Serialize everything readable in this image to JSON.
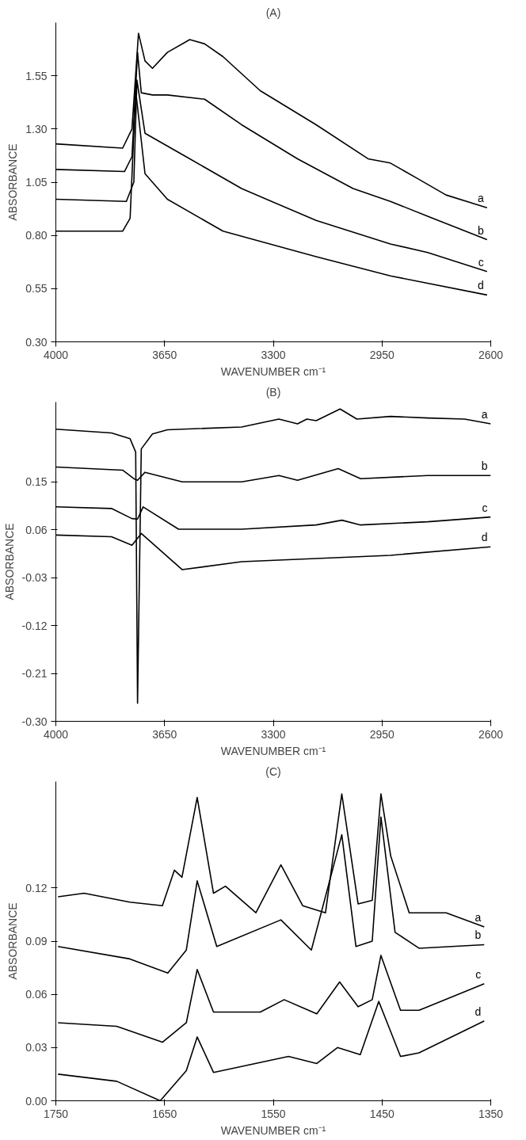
{
  "chart_data": [
    {
      "type": "line",
      "title": "(A)",
      "xlabel": "WAVENUMBER cm⁻¹",
      "ylabel": "ABSORBANCE",
      "xlim": [
        4000,
        2600
      ],
      "xticks": [
        4000,
        3650,
        3300,
        2950,
        2600
      ],
      "ylim": [
        0.3,
        1.8
      ],
      "yticks": [
        {
          "value": 0.3,
          "label": "0.30"
        },
        {
          "value": 0.55,
          "label": "0.55"
        },
        {
          "value": 0.8,
          "label": "0.80"
        },
        {
          "value": 1.05,
          "label": "1.05"
        },
        {
          "value": 1.3,
          "label": "1.30"
        },
        {
          "value": 1.55,
          "label": "1.55"
        }
      ],
      "grid": false,
      "legend": false,
      "series": [
        {
          "name": "a",
          "color": "#000000",
          "x": [
            4000,
            3785,
            3755,
            3734,
            3713,
            3689,
            3641,
            3569,
            3521,
            3462,
            3342,
            3162,
            2995,
            2923,
            2839,
            2744,
            2612
          ],
          "values": [
            1.23,
            1.21,
            1.3,
            1.75,
            1.62,
            1.585,
            1.66,
            1.72,
            1.7,
            1.64,
            1.48,
            1.32,
            1.16,
            1.14,
            1.07,
            0.99,
            0.93
          ]
        },
        {
          "name": "b",
          "color": "#000000",
          "x": [
            4000,
            3779,
            3755,
            3737,
            3725,
            3689,
            3641,
            3521,
            3402,
            3222,
            3043,
            2923,
            2803,
            2612
          ],
          "values": [
            1.11,
            1.1,
            1.17,
            1.66,
            1.47,
            1.46,
            1.46,
            1.44,
            1.32,
            1.16,
            1.02,
            0.96,
            0.89,
            0.78
          ]
        },
        {
          "name": "c",
          "color": "#000000",
          "x": [
            4000,
            3773,
            3749,
            3739,
            3713,
            3581,
            3402,
            3162,
            2923,
            2803,
            2612
          ],
          "values": [
            0.97,
            0.96,
            1.05,
            1.53,
            1.28,
            1.17,
            1.02,
            0.87,
            0.76,
            0.72,
            0.63
          ]
        },
        {
          "name": "d",
          "color": "#000000",
          "x": [
            4000,
            3785,
            3761,
            3743,
            3713,
            3641,
            3462,
            3162,
            2923,
            2612
          ],
          "values": [
            0.82,
            0.82,
            0.88,
            1.48,
            1.09,
            0.97,
            0.82,
            0.7,
            0.61,
            0.52
          ]
        }
      ]
    },
    {
      "type": "line",
      "title": "(B)",
      "xlabel": "WAVENUMBER cm⁻¹",
      "ylabel": "ABSORBANCE",
      "xlim": [
        4000,
        2600
      ],
      "xticks": [
        4000,
        3650,
        3300,
        2950,
        2600
      ],
      "ylim": [
        -0.3,
        0.3
      ],
      "yticks": [
        {
          "value": -0.3,
          "label": "-0.30"
        },
        {
          "value": -0.21,
          "label": "-0.21"
        },
        {
          "value": -0.12,
          "label": "-0.12"
        },
        {
          "value": -0.03,
          "label": "-0.03"
        },
        {
          "value": 0.06,
          "label": "0.06"
        },
        {
          "value": 0.15,
          "label": "0.15"
        }
      ],
      "grid": false,
      "legend": false,
      "series": [
        {
          "name": "a",
          "color": "#000000",
          "x": [
            4000,
            3821,
            3761,
            3743,
            3737,
            3725,
            3689,
            3641,
            3402,
            3282,
            3222,
            3192,
            3162,
            3085,
            3031,
            2923,
            2803,
            2684,
            2600
          ],
          "values": [
            0.249,
            0.242,
            0.231,
            0.206,
            -0.266,
            0.212,
            0.24,
            0.248,
            0.253,
            0.268,
            0.259,
            0.268,
            0.265,
            0.287,
            0.268,
            0.273,
            0.27,
            0.268,
            0.259
          ]
        },
        {
          "name": "b",
          "color": "#000000",
          "x": [
            4000,
            3785,
            3749,
            3737,
            3713,
            3593,
            3402,
            3282,
            3222,
            3091,
            3019,
            2803,
            2600
          ],
          "values": [
            0.178,
            0.172,
            0.156,
            0.153,
            0.168,
            0.15,
            0.15,
            0.162,
            0.153,
            0.175,
            0.156,
            0.162,
            0.162
          ]
        },
        {
          "name": "c",
          "color": "#000000",
          "x": [
            4000,
            3821,
            3755,
            3737,
            3719,
            3605,
            3402,
            3162,
            3079,
            3019,
            2803,
            2600
          ],
          "values": [
            0.103,
            0.1,
            0.081,
            0.08,
            0.103,
            0.061,
            0.061,
            0.069,
            0.078,
            0.069,
            0.075,
            0.084
          ]
        },
        {
          "name": "d",
          "color": "#000000",
          "x": [
            4000,
            3821,
            3755,
            3725,
            3593,
            3402,
            3162,
            2923,
            2600
          ],
          "values": [
            0.05,
            0.047,
            0.031,
            0.053,
            -0.015,
            0.0,
            0.006,
            0.012,
            0.028
          ]
        }
      ]
    },
    {
      "type": "line",
      "title": "(C)",
      "xlabel": "WAVENUMBER cm⁻¹",
      "ylabel": "ABSORBANCE",
      "xlim": [
        1750,
        1350
      ],
      "xticks": [
        1750,
        1650,
        1550,
        1450,
        1350
      ],
      "ylim": [
        0.0,
        0.18
      ],
      "yticks": [
        {
          "value": 0.0,
          "label": "0.00"
        },
        {
          "value": 0.03,
          "label": "0.03"
        },
        {
          "value": 0.06,
          "label": "0.06"
        },
        {
          "value": 0.09,
          "label": "0.09"
        },
        {
          "value": 0.12,
          "label": "0.12"
        }
      ],
      "grid": false,
      "legend": false,
      "series": [
        {
          "name": "a",
          "color": "#000000",
          "x": [
            1748,
            1724,
            1682,
            1652,
            1641,
            1634,
            1620,
            1605,
            1594,
            1566,
            1543,
            1523,
            1502,
            1487,
            1472,
            1459,
            1451,
            1442,
            1425,
            1391,
            1356
          ],
          "values": [
            0.115,
            0.117,
            0.112,
            0.11,
            0.13,
            0.126,
            0.171,
            0.117,
            0.121,
            0.106,
            0.133,
            0.11,
            0.106,
            0.173,
            0.111,
            0.113,
            0.173,
            0.138,
            0.106,
            0.106,
            0.098
          ]
        },
        {
          "name": "b",
          "color": "#000000",
          "x": [
            1748,
            1682,
            1647,
            1630,
            1620,
            1602,
            1543,
            1515,
            1487,
            1474,
            1459,
            1451,
            1438,
            1416,
            1356
          ],
          "values": [
            0.087,
            0.08,
            0.072,
            0.085,
            0.124,
            0.087,
            0.102,
            0.085,
            0.15,
            0.087,
            0.09,
            0.16,
            0.095,
            0.086,
            0.088
          ]
        },
        {
          "name": "c",
          "color": "#000000",
          "x": [
            1748,
            1694,
            1652,
            1630,
            1620,
            1605,
            1562,
            1540,
            1510,
            1489,
            1472,
            1459,
            1451,
            1433,
            1416,
            1356
          ],
          "values": [
            0.044,
            0.042,
            0.033,
            0.044,
            0.074,
            0.05,
            0.05,
            0.057,
            0.049,
            0.067,
            0.053,
            0.057,
            0.082,
            0.051,
            0.051,
            0.066
          ]
        },
        {
          "name": "d",
          "color": "#000000",
          "x": [
            1748,
            1694,
            1654,
            1630,
            1620,
            1605,
            1536,
            1510,
            1491,
            1470,
            1453,
            1433,
            1416,
            1356
          ],
          "values": [
            0.015,
            0.011,
            0.0,
            0.017,
            0.036,
            0.016,
            0.025,
            0.021,
            0.03,
            0.026,
            0.056,
            0.025,
            0.027,
            0.045
          ]
        }
      ]
    }
  ]
}
